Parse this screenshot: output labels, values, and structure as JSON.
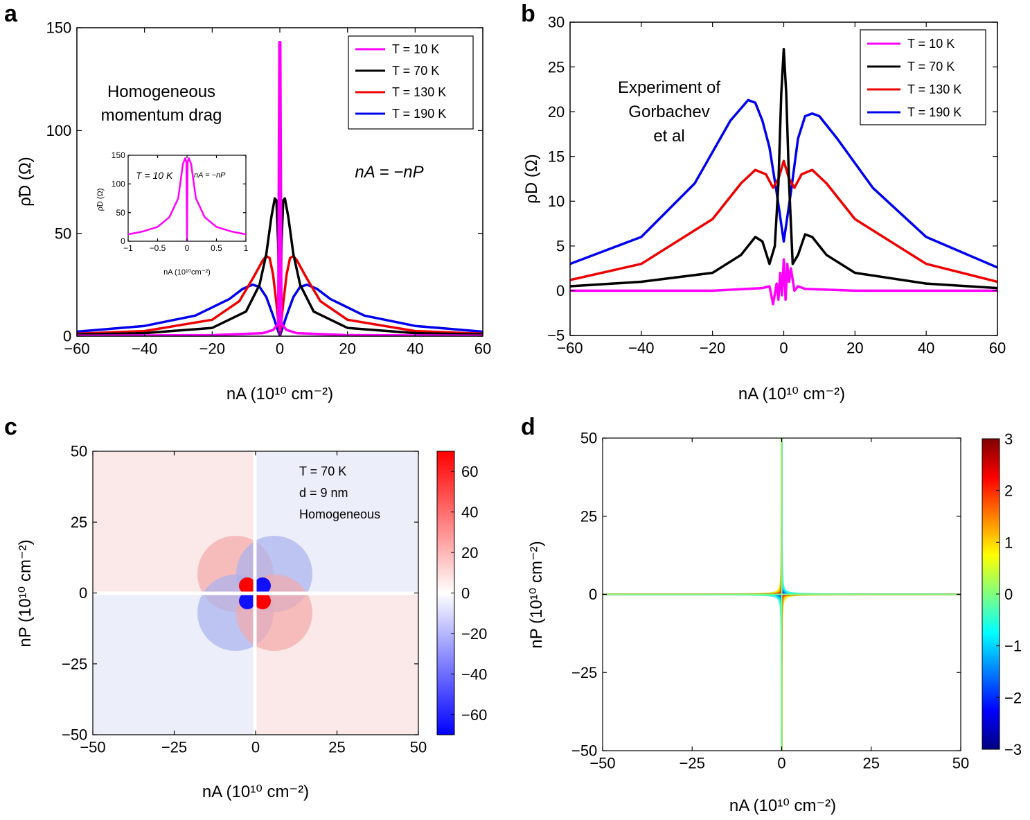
{
  "panels": {
    "a": {
      "label": "a",
      "y_axis_label": "ρ̃D (Ω)",
      "x_axis_label": "nA (10¹⁰ cm⁻²)",
      "annotation_line1": "Homogeneous",
      "annotation_line2": "momentum drag",
      "relation": "nA = −nP",
      "inset": {
        "temperature": "T = 10 K",
        "relation": "nA = −nP",
        "y_axis_label": "ρ̃D (Ω)",
        "x_axis_label": "nA (10¹⁰cm⁻²)"
      }
    },
    "b": {
      "label": "b",
      "y_axis_label": "ρD (Ω)",
      "x_axis_label": "nA (10¹⁰ cm⁻²)",
      "annotation_line1": "Experiment of",
      "annotation_line2": "Gorbachev",
      "annotation_line3": "et al"
    },
    "c": {
      "label": "c",
      "y_axis_label": "nP (10¹⁰ cm⁻²)",
      "x_axis_label": "nA (10¹⁰ cm⁻²)",
      "annotation_line1": "T = 70 K",
      "annotation_line2": "d = 9 nm",
      "annotation_line3": "Homogeneous"
    },
    "d": {
      "label": "d",
      "y_axis_label": "nP (10¹⁰ cm⁻²)",
      "x_axis_label": "nA (10¹⁰ cm⁻²)"
    }
  },
  "legend": [
    "T = 10 K",
    "T = 70 K",
    "T = 130 K",
    "T = 190 K"
  ],
  "colors": {
    "T10": "#ff00ff",
    "T70": "#000000",
    "T130": "#ee0000",
    "T190": "#0000ee"
  },
  "chart_data": [
    {
      "panel": "a",
      "type": "line",
      "title": "Homogeneous momentum drag",
      "xlabel": "nA (10^10 cm^-2)",
      "ylabel": "rho~_D (Ohm)",
      "xlim": [
        -60,
        60
      ],
      "ylim": [
        0,
        150
      ],
      "xticks": [
        -60,
        -40,
        -20,
        0,
        20,
        40,
        60
      ],
      "yticks": [
        0,
        50,
        100,
        150
      ],
      "legend_position": "top-right",
      "series": [
        {
          "name": "T = 10 K",
          "x": [
            -60,
            -20,
            -5,
            -2,
            -0.5,
            -0.15,
            0,
            0.15,
            0.5,
            2,
            5,
            20,
            60
          ],
          "y": [
            0.2,
            0.5,
            1.5,
            3,
            6,
            143,
            0,
            143,
            6,
            3,
            1.5,
            0.5,
            0.2
          ]
        },
        {
          "name": "T = 70 K",
          "x": [
            -60,
            -40,
            -20,
            -10,
            -6,
            -4,
            -2.5,
            -1.5,
            -1,
            -0.5,
            0,
            0.5,
            1,
            1.5,
            2.5,
            4,
            6,
            10,
            20,
            40,
            60
          ],
          "y": [
            0.8,
            1.5,
            4,
            12,
            25,
            40,
            58,
            67,
            66,
            45,
            0,
            45,
            66,
            67,
            58,
            40,
            25,
            12,
            4,
            1.5,
            0.8
          ]
        },
        {
          "name": "T = 130 K",
          "x": [
            -60,
            -40,
            -20,
            -12,
            -8,
            -5,
            -4,
            -3,
            -2,
            -1,
            0,
            1,
            2,
            3,
            4,
            5,
            8,
            12,
            20,
            40,
            60
          ],
          "y": [
            1.2,
            2.5,
            8,
            17,
            28,
            37,
            39,
            38,
            30,
            16,
            0,
            16,
            30,
            38,
            39,
            37,
            28,
            17,
            8,
            2.5,
            1.2
          ]
        },
        {
          "name": "T = 190 K",
          "x": [
            -60,
            -40,
            -25,
            -15,
            -11,
            -8,
            -6,
            -4,
            -2,
            -1,
            0,
            1,
            2,
            4,
            6,
            8,
            11,
            15,
            25,
            40,
            60
          ],
          "y": [
            2.2,
            5,
            10,
            18,
            23,
            25,
            24,
            19,
            10,
            5,
            0,
            5,
            10,
            19,
            24,
            25,
            23,
            18,
            10,
            5,
            2.2
          ]
        }
      ],
      "inset": {
        "xlim": [
          -1,
          1
        ],
        "ylim": [
          0,
          150
        ],
        "xticks": [
          -1,
          -0.5,
          0,
          0.5,
          1
        ],
        "yticks": [
          0,
          50,
          100,
          150
        ],
        "series": [
          {
            "name": "T = 10 K",
            "x": [
              -1,
              -0.75,
              -0.5,
              -0.3,
              -0.15,
              -0.07,
              -0.03,
              -0.01,
              0,
              0.01,
              0.03,
              0.07,
              0.15,
              0.3,
              0.5,
              0.75,
              1
            ],
            "y": [
              12,
              17,
              25,
              42,
              75,
              135,
              145,
              138,
              0,
              138,
              145,
              135,
              75,
              42,
              25,
              17,
              12
            ]
          }
        ]
      }
    },
    {
      "panel": "b",
      "type": "line",
      "title": "Experiment of Gorbachev et al",
      "xlabel": "nA (10^10 cm^-2)",
      "ylabel": "rho_D (Ohm)",
      "xlim": [
        -60,
        60
      ],
      "ylim": [
        -5,
        30
      ],
      "xticks": [
        -60,
        -40,
        -20,
        0,
        20,
        40,
        60
      ],
      "yticks": [
        -5,
        0,
        5,
        10,
        15,
        20,
        25,
        30
      ],
      "legend_position": "top-right",
      "series": [
        {
          "name": "T = 10 K",
          "x": [
            -60,
            -20,
            -6,
            -4,
            -3,
            -2,
            -1.5,
            -1,
            -0.5,
            0,
            0.5,
            1,
            1.5,
            2,
            3,
            4,
            6,
            20,
            60
          ],
          "y": [
            0,
            0,
            0.3,
            0.5,
            -1.5,
            0.8,
            -1,
            2,
            -0.5,
            3.5,
            -1,
            3,
            1,
            2.5,
            0,
            0.5,
            0.2,
            0,
            0
          ]
        },
        {
          "name": "T = 70 K",
          "x": [
            -60,
            -40,
            -20,
            -12,
            -8,
            -6,
            -4,
            -2.5,
            -1.5,
            -0.7,
            0,
            0.7,
            1.5,
            2.5,
            4,
            6,
            8,
            12,
            20,
            40,
            60
          ],
          "y": [
            0.5,
            1,
            2,
            4,
            6,
            5.5,
            3,
            5,
            12,
            22,
            27,
            22,
            12,
            3,
            4,
            6.3,
            6,
            4,
            2,
            0.8,
            0.3
          ]
        },
        {
          "name": "T = 130 K",
          "x": [
            -60,
            -40,
            -20,
            -12,
            -8,
            -5,
            -3,
            -1.5,
            0,
            1.5,
            3,
            5,
            8,
            12,
            20,
            40,
            60
          ],
          "y": [
            1.2,
            3,
            8,
            12,
            13.5,
            13,
            11.5,
            12.5,
            14.5,
            12.5,
            11.5,
            13,
            13.5,
            12,
            8,
            3,
            1
          ]
        },
        {
          "name": "T = 190 K",
          "x": [
            -60,
            -40,
            -25,
            -15,
            -10,
            -8,
            -6,
            -4,
            -2,
            0,
            2,
            4,
            6,
            8,
            10,
            15,
            25,
            40,
            60
          ],
          "y": [
            3,
            6,
            12,
            19,
            21.3,
            21,
            19,
            16,
            11,
            5.5,
            11,
            17,
            19.5,
            19.8,
            19.5,
            17,
            11.5,
            6,
            2.6
          ]
        }
      ]
    },
    {
      "panel": "c",
      "type": "heatmap",
      "title": "T = 70 K, d = 9 nm, Homogeneous",
      "xlabel": "nA (10^10 cm^-2)",
      "ylabel": "nP (10^10 cm^-2)",
      "xlim": [
        -50,
        50
      ],
      "ylim": [
        -50,
        50
      ],
      "xticks": [
        -50,
        -25,
        0,
        25,
        50
      ],
      "yticks": [
        -50,
        -25,
        0,
        25,
        50
      ],
      "colorbar_range": [
        -70,
        70
      ],
      "colorbar_ticks": [
        -60,
        -40,
        -20,
        0,
        20,
        40,
        60
      ],
      "sign_by_quadrant": {
        "top-left": "positive",
        "top-right": "negative",
        "bottom-left": "negative",
        "bottom-right": "positive"
      },
      "peak_magnitude": 70
    },
    {
      "panel": "d",
      "type": "contour",
      "xlabel": "nA (10^10 cm^-2)",
      "ylabel": "nP (10^10 cm^-2)",
      "xlim": [
        -50,
        50
      ],
      "ylim": [
        -50,
        50
      ],
      "xticks": [
        -50,
        -25,
        0,
        25,
        50
      ],
      "yticks": [
        -50,
        -25,
        0,
        25,
        50
      ],
      "colorbar_range": [
        -3,
        3
      ],
      "colorbar_ticks": [
        -3,
        -2,
        -1,
        0,
        1,
        2,
        3
      ],
      "contour_levels": [
        -2.5,
        -2,
        -1.5,
        -1,
        -0.5,
        0,
        0.5,
        1,
        1.5,
        2,
        2.5
      ],
      "positive_quadrants": [
        "top-left",
        "bottom-right"
      ],
      "negative_quadrants": [
        "top-right",
        "bottom-left"
      ]
    }
  ]
}
